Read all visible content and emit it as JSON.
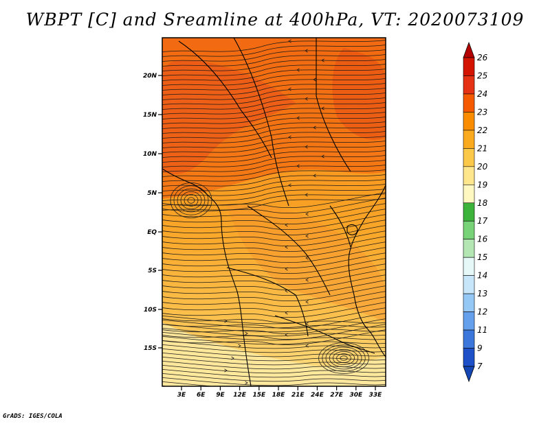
{
  "title": "WBPT [C] and Sreamline at 400hPa, VT: 2020073109",
  "credit": "GrADS: IGES/COLA",
  "map": {
    "lat_ticks": [
      "20N",
      "15N",
      "10N",
      "5N",
      "EQ",
      "5S",
      "10S",
      "15S"
    ],
    "lon_ticks": [
      "3E",
      "6E",
      "9E",
      "12E",
      "15E",
      "18E",
      "21E",
      "24E",
      "27E",
      "30E",
      "33E"
    ]
  },
  "colorbar": {
    "labels": [
      "26",
      "25",
      "24",
      "23",
      "22",
      "21",
      "20",
      "19",
      "18",
      "17",
      "16",
      "15",
      "14",
      "13",
      "12",
      "11",
      "9",
      "7"
    ],
    "colors": [
      "#b40000",
      "#d21400",
      "#e63214",
      "#f55a00",
      "#fa8c00",
      "#faaa1e",
      "#fcc84a",
      "#fee68c",
      "#fff8c0",
      "#3cb43c",
      "#78d278",
      "#b4e6b4",
      "#e6f8f8",
      "#c8e6fa",
      "#96c8f5",
      "#64a0eb",
      "#3c78dc",
      "#1e50c8",
      "#1446b4"
    ]
  }
}
